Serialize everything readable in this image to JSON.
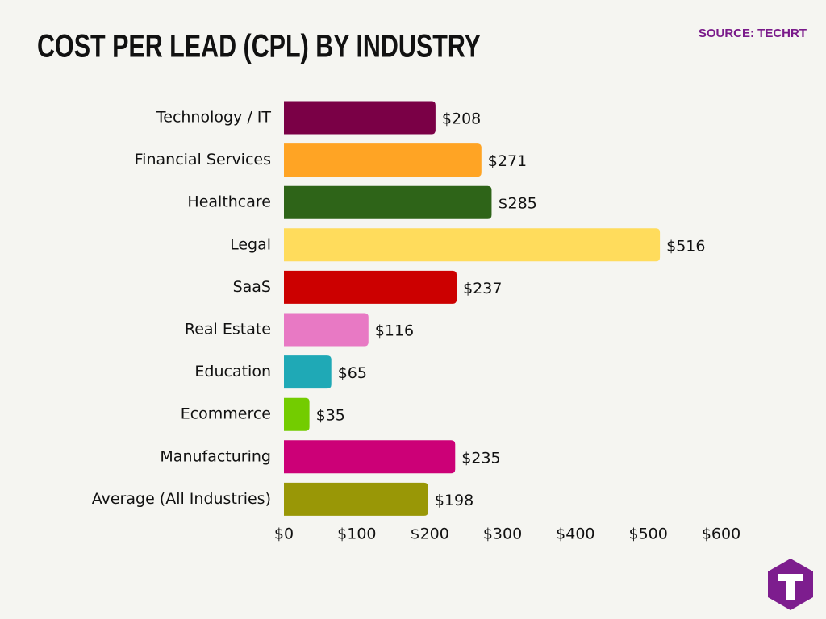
{
  "chart_data": {
    "type": "barh",
    "title": "COST PER LEAD (CPL) BY INDUSTRY",
    "source": "SOURCE: TECHRT",
    "categories": [
      "Technology / IT",
      "Financial Services",
      "Healthcare",
      "Legal",
      "SaaS",
      "Real Estate",
      "Education",
      "Ecommerce",
      "Manufacturing",
      "Average (All Industries)"
    ],
    "values": [
      208,
      271,
      285,
      516,
      237,
      116,
      65,
      35,
      235,
      198
    ],
    "value_labels": [
      "$208",
      "$271",
      "$285",
      "$516",
      "$237",
      "$116",
      "$65",
      "$35",
      "$235",
      "$198"
    ],
    "colors": [
      "#7a0046",
      "#ffa424",
      "#2e6418",
      "#ffdc5c",
      "#cc0000",
      "#e879c4",
      "#1fa9b6",
      "#73cc00",
      "#cc0077",
      "#999706"
    ],
    "xlim": [
      0,
      600
    ],
    "xticks": [
      {
        "value": 0,
        "label": "$0"
      },
      {
        "value": 100,
        "label": "$100"
      },
      {
        "value": 200,
        "label": "$200"
      },
      {
        "value": 300,
        "label": "$300"
      },
      {
        "value": 400,
        "label": "$400"
      },
      {
        "value": 500,
        "label": "$500"
      },
      {
        "value": 600,
        "label": "$600"
      }
    ],
    "grid": false
  }
}
